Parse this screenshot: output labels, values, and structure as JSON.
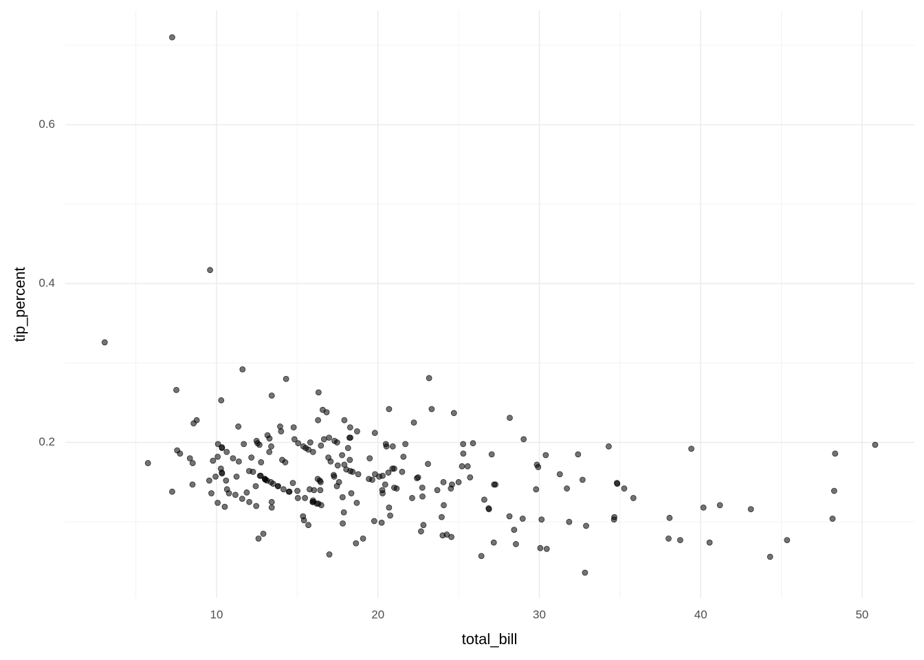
{
  "chart_data": {
    "type": "scatter",
    "x_label": "total_bill",
    "y_label": "tip_percent",
    "x": [
      16.99,
      10.34,
      21.01,
      23.68,
      24.59,
      25.29,
      8.77,
      26.88,
      15.04,
      14.78,
      10.27,
      35.26,
      15.42,
      18.43,
      14.83,
      21.58,
      10.33,
      16.29,
      16.97,
      20.65,
      17.92,
      20.29,
      15.77,
      39.42,
      19.82,
      17.81,
      13.37,
      12.69,
      21.7,
      19.65,
      9.55,
      18.35,
      15.06,
      20.69,
      17.78,
      24.06,
      16.31,
      16.93,
      18.69,
      31.27,
      16.04,
      17.46,
      13.94,
      9.68,
      30.4,
      18.29,
      22.23,
      32.4,
      28.55,
      18.04,
      12.54,
      10.29,
      34.81,
      9.94,
      25.56,
      19.49,
      38.01,
      26.41,
      11.24,
      48.27,
      20.29,
      13.81,
      11.02,
      18.29,
      17.59,
      20.08,
      16.45,
      3.07,
      20.23,
      15.01,
      12.02,
      17.07,
      26.86,
      25.28,
      14.73,
      10.51,
      17.92,
      27.2,
      22.76,
      17.29,
      19.44,
      16.66,
      10.07,
      32.68,
      15.98,
      34.83,
      13.03,
      18.28,
      24.71,
      21.16,
      28.97,
      22.49,
      5.75,
      16.32,
      22.75,
      40.17,
      27.28,
      12.03,
      21.01,
      12.46,
      11.35,
      15.38,
      44.3,
      22.42,
      20.92,
      15.36,
      20.49,
      25.21,
      18.24,
      14.31,
      14.0,
      7.25,
      38.07,
      23.95,
      25.71,
      17.31,
      29.93,
      10.65,
      12.43,
      24.08,
      11.69,
      13.42,
      14.26,
      15.95,
      12.48,
      29.8,
      8.52,
      14.52,
      11.38,
      22.82,
      19.08,
      20.27,
      11.17,
      12.26,
      18.26,
      8.51,
      10.33,
      14.15,
      16.0,
      13.16,
      17.47,
      34.3,
      41.19,
      27.05,
      16.43,
      8.35,
      18.64,
      11.87,
      9.78,
      7.51,
      14.07,
      13.13,
      17.26,
      24.55,
      19.77,
      29.85,
      48.17,
      25.0,
      13.39,
      16.49,
      21.5,
      12.66,
      16.21,
      13.81,
      17.51,
      24.52,
      20.76,
      31.71,
      10.59,
      10.63,
      50.81,
      15.81,
      7.25,
      31.85,
      16.82,
      32.9,
      17.89,
      14.48,
      9.6,
      34.63,
      34.65,
      23.33,
      45.35,
      23.17,
      40.55,
      20.69,
      20.9,
      30.46,
      18.15,
      23.1,
      15.69,
      19.81,
      28.44,
      15.48,
      16.58,
      7.56,
      10.34,
      43.11,
      13.0,
      13.51,
      18.71,
      12.74,
      13.0,
      16.4,
      20.53,
      16.47,
      26.59,
      38.73,
      24.27,
      12.76,
      30.06,
      25.89,
      48.33,
      13.27,
      28.17,
      12.9,
      28.15,
      11.59,
      7.74,
      30.14,
      12.16,
      13.42,
      8.58,
      15.98,
      13.42,
      16.27,
      10.09,
      20.45,
      13.28,
      22.12,
      24.01,
      15.69,
      11.61,
      10.77,
      15.53,
      10.07,
      12.6,
      32.83,
      35.83,
      29.03,
      27.18,
      22.67,
      17.82,
      18.78
    ],
    "values": [
      0.059,
      0.161,
      0.167,
      0.14,
      0.147,
      0.186,
      0.228,
      0.116,
      0.13,
      0.219,
      0.167,
      0.142,
      0.102,
      0.163,
      0.204,
      0.182,
      0.162,
      0.228,
      0.206,
      0.162,
      0.228,
      0.136,
      0.141,
      0.192,
      0.16,
      0.131,
      0.15,
      0.158,
      0.198,
      0.153,
      0.152,
      0.136,
      0.199,
      0.118,
      0.184,
      0.15,
      0.123,
      0.181,
      0.124,
      0.16,
      0.14,
      0.145,
      0.22,
      0.136,
      0.184,
      0.164,
      0.225,
      0.185,
      0.072,
      0.166,
      0.199,
      0.253,
      0.149,
      0.157,
      0.17,
      0.18,
      0.079,
      0.057,
      0.157,
      0.139,
      0.158,
      0.145,
      0.18,
      0.206,
      0.15,
      0.157,
      0.15,
      0.326,
      0.099,
      0.139,
      0.164,
      0.176,
      0.117,
      0.198,
      0.149,
      0.119,
      0.172,
      0.147,
      0.132,
      0.157,
      0.154,
      0.204,
      0.182,
      0.153,
      0.127,
      0.148,
      0.153,
      0.219,
      0.237,
      0.142,
      0.104,
      0.156,
      0.174,
      0.263,
      0.143,
      0.118,
      0.147,
      0.125,
      0.143,
      0.12,
      0.22,
      0.195,
      0.056,
      0.155,
      0.195,
      0.107,
      0.198,
      0.17,
      0.206,
      0.28,
      0.214,
      0.138,
      0.105,
      0.106,
      0.156,
      0.202,
      0.169,
      0.141,
      0.145,
      0.121,
      0.198,
      0.125,
      0.175,
      0.125,
      0.202,
      0.141,
      0.174,
      0.138,
      0.176,
      0.096,
      0.079,
      0.14,
      0.134,
      0.163,
      0.178,
      0.147,
      0.194,
      0.141,
      0.125,
      0.209,
      0.2,
      0.195,
      0.121,
      0.185,
      0.14,
      0.18,
      0.073,
      0.137,
      0.177,
      0.266,
      0.178,
      0.152,
      0.159,
      0.081,
      0.101,
      0.172,
      0.104,
      0.15,
      0.195,
      0.121,
      0.163,
      0.197,
      0.123,
      0.145,
      0.171,
      0.142,
      0.108,
      0.142,
      0.152,
      0.188,
      0.197,
      0.2,
      0.71,
      0.1,
      0.238,
      0.095,
      0.112,
      0.138,
      0.417,
      0.103,
      0.106,
      0.242,
      0.077,
      0.281,
      0.074,
      0.242,
      0.167,
      0.066,
      0.193,
      0.173,
      0.096,
      0.212,
      0.09,
      0.13,
      0.241,
      0.19,
      0.193,
      0.116,
      0.154,
      0.148,
      0.214,
      0.158,
      0.154,
      0.152,
      0.195,
      0.196,
      0.128,
      0.077,
      0.084,
      0.175,
      0.067,
      0.199,
      0.186,
      0.188,
      0.231,
      0.085,
      0.107,
      0.129,
      0.186,
      0.103,
      0.181,
      0.259,
      0.224,
      0.188,
      0.118,
      0.154,
      0.198,
      0.147,
      0.205,
      0.13,
      0.083,
      0.191,
      0.292,
      0.136,
      0.193,
      0.124,
      0.079,
      0.036,
      0.13,
      0.204,
      0.074,
      0.088,
      0.098,
      0.16
    ],
    "color": "#000000",
    "xlim": [
      0.63,
      53.24
    ],
    "ylim": [
      0.004,
      0.744
    ],
    "xticks": [
      10,
      20,
      30,
      40,
      50
    ],
    "yticks": [
      0.2,
      0.4,
      0.6
    ],
    "xminor": [
      5,
      15,
      25,
      35,
      45
    ],
    "yminor": [
      0.1,
      0.3,
      0.5,
      0.7
    ],
    "grid": true
  }
}
